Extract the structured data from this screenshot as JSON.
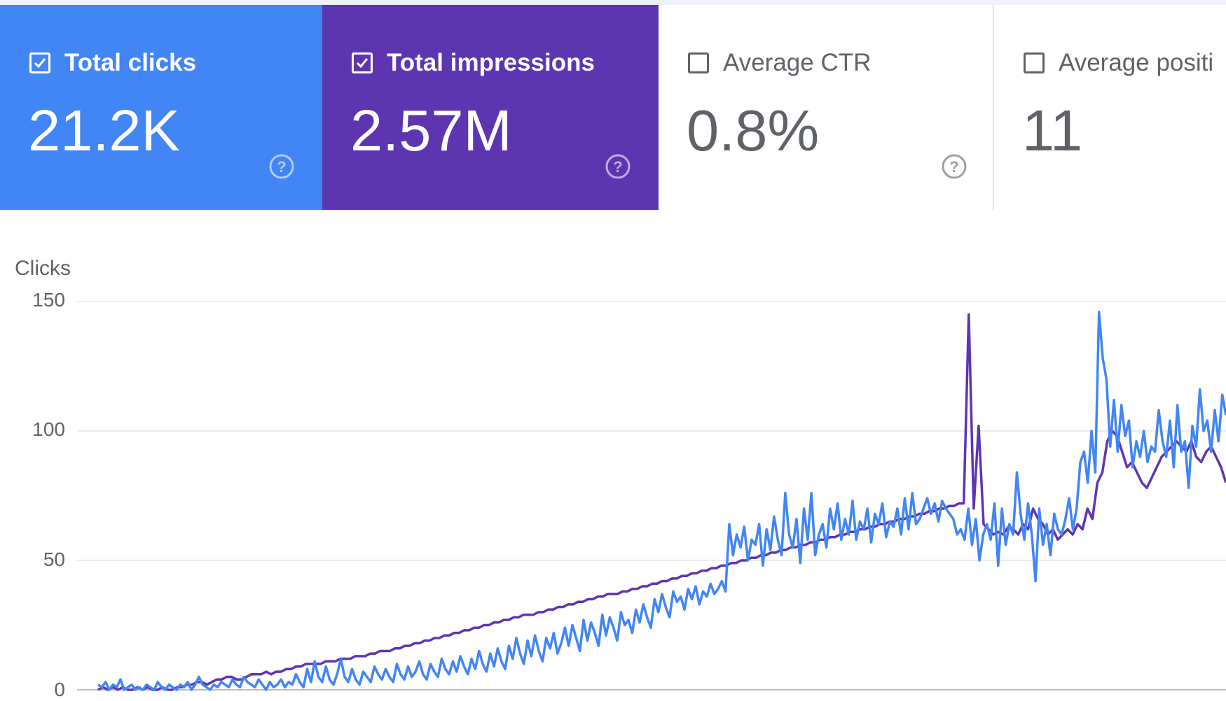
{
  "metrics": [
    {
      "label": "Total clicks",
      "value": "21.2K",
      "checked": true,
      "color": "#4285f4"
    },
    {
      "label": "Total impressions",
      "value": "2.57M",
      "checked": true,
      "color": "#5e35b1"
    },
    {
      "label": "Average CTR",
      "value": "0.8%",
      "checked": false,
      "color": "#ffffff"
    },
    {
      "label": "Average positi",
      "value": "11",
      "checked": false,
      "color": "#ffffff"
    }
  ],
  "chart_data": {
    "type": "line",
    "ylabel": "Clicks",
    "ylim": [
      0,
      150
    ],
    "yticks": [
      "150",
      "100",
      "50",
      "0"
    ],
    "grid": true,
    "series": [
      {
        "color": "#4285f4",
        "values": [
          2,
          1,
          3,
          0,
          2,
          1,
          4,
          0,
          1,
          2,
          0,
          1,
          0,
          2,
          1,
          0,
          3,
          1,
          0,
          2,
          1,
          0,
          2,
          1,
          3,
          0,
          2,
          5,
          2,
          1,
          0,
          2,
          1,
          3,
          2,
          1,
          4,
          2,
          1,
          5,
          3,
          2,
          1,
          4,
          2,
          0,
          3,
          1,
          2,
          4,
          1,
          3,
          2,
          6,
          3,
          1,
          8,
          3,
          11,
          5,
          3,
          9,
          4,
          2,
          6,
          12,
          5,
          3,
          8,
          4,
          2,
          7,
          5,
          3,
          9,
          6,
          4,
          8,
          5,
          3,
          10,
          6,
          4,
          9,
          5,
          7,
          11,
          6,
          4,
          10,
          7,
          5,
          12,
          8,
          6,
          11,
          7,
          13,
          9,
          6,
          12,
          8,
          15,
          10,
          7,
          14,
          9,
          16,
          11,
          8,
          17,
          12,
          20,
          14,
          10,
          19,
          13,
          21,
          15,
          11,
          20,
          16,
          22,
          14,
          18,
          24,
          17,
          25,
          20,
          15,
          27,
          19,
          26,
          22,
          17,
          29,
          21,
          28,
          24,
          19,
          30,
          25,
          27,
          22,
          31,
          26,
          33,
          28,
          24,
          35,
          30,
          37,
          32,
          28,
          38,
          34,
          36,
          31,
          39,
          35,
          40,
          33,
          38,
          36,
          41,
          37,
          39,
          42,
          38,
          64,
          52,
          60,
          55,
          63,
          50,
          58,
          56,
          64,
          48,
          62,
          54,
          67,
          58,
          52,
          76,
          60,
          55,
          66,
          49,
          70,
          58,
          76,
          52,
          60,
          64,
          55,
          70,
          62,
          72,
          58,
          66,
          60,
          73,
          58,
          65,
          62,
          70,
          57,
          68,
          64,
          72,
          59,
          65,
          63,
          70,
          60,
          74,
          62,
          76,
          64,
          66,
          70,
          74,
          68,
          72,
          65,
          73,
          70,
          68,
          66,
          60,
          62,
          58,
          70,
          56,
          66,
          50,
          60,
          64,
          58,
          72,
          48,
          70,
          56,
          64,
          60,
          84,
          68,
          58,
          72,
          60,
          42,
          70,
          56,
          64,
          52,
          68,
          62,
          60,
          66,
          74,
          62,
          70,
          88,
          92,
          80,
          100,
          84,
          146,
          128,
          120,
          94,
          112,
          92,
          110,
          98,
          104,
          86,
          96,
          90,
          100,
          88,
          94,
          92,
          108,
          96,
          90,
          104,
          86,
          110,
          92,
          96,
          78,
          102,
          94,
          116,
          100,
          104,
          92,
          108,
          96,
          114,
          106
        ],
        "x_end": 1750
      },
      {
        "color": "#5e35b1",
        "values": [
          0,
          1,
          0,
          1,
          0,
          1,
          0,
          0,
          1,
          0,
          1,
          0,
          0,
          1,
          0,
          0,
          1,
          1,
          2,
          2,
          3,
          3,
          2,
          3,
          4,
          4,
          5,
          5,
          4,
          4,
          5,
          6,
          6,
          6,
          7,
          6,
          7,
          7,
          8,
          8,
          9,
          9,
          10,
          10,
          10,
          10,
          11,
          11,
          11,
          12,
          12,
          12,
          13,
          13,
          13,
          14,
          14,
          15,
          15,
          15,
          16,
          16,
          17,
          17,
          18,
          18,
          19,
          19,
          20,
          20,
          21,
          21,
          22,
          22,
          23,
          23,
          24,
          24,
          25,
          25,
          26,
          26,
          27,
          27,
          28,
          28,
          29,
          29,
          29,
          30,
          30,
          31,
          31,
          32,
          32,
          33,
          33,
          34,
          34,
          35,
          35,
          36,
          36,
          37,
          37,
          37,
          38,
          38,
          39,
          39,
          40,
          40,
          41,
          41,
          42,
          42,
          43,
          43,
          44,
          44,
          45,
          45,
          46,
          46,
          47,
          47,
          48,
          48,
          49,
          49,
          50,
          50,
          51,
          51,
          52,
          52,
          53,
          53,
          54,
          54,
          55,
          55,
          56,
          56,
          57,
          57,
          58,
          58,
          59,
          59,
          60,
          60,
          61,
          61,
          62,
          62,
          63,
          63,
          64,
          64,
          65,
          65,
          66,
          66,
          67,
          67,
          68,
          68,
          69,
          69,
          70,
          70,
          71,
          71,
          72,
          72,
          145,
          70,
          102,
          64,
          62,
          60,
          61,
          60,
          63,
          62,
          60,
          64,
          62,
          70,
          66,
          64,
          60,
          62,
          58,
          60,
          62,
          60,
          64,
          62,
          70,
          66,
          80,
          84,
          96,
          100,
          98,
          92,
          86,
          88,
          84,
          80,
          78,
          82,
          86,
          90,
          92,
          94,
          96,
          94,
          92,
          96,
          90,
          88,
          92,
          94,
          90,
          86,
          80
        ],
        "x_end": 1750
      }
    ]
  }
}
